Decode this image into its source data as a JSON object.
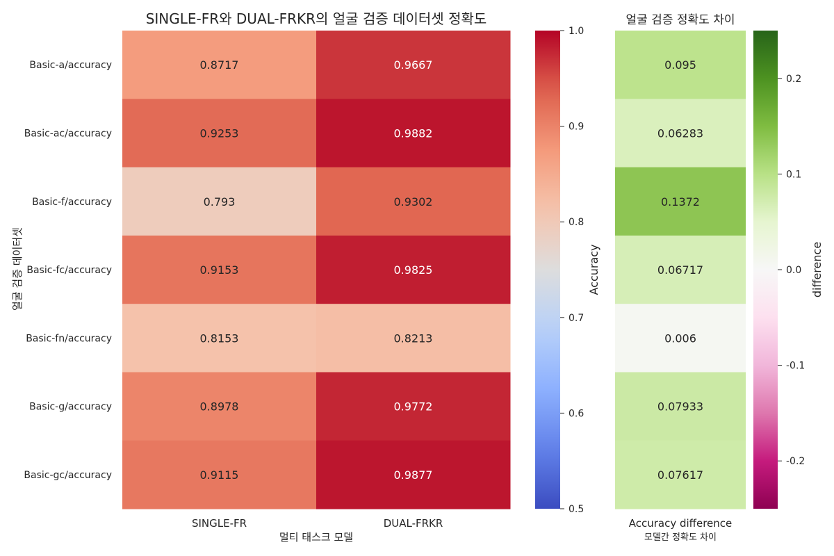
{
  "chart_data": [
    {
      "type": "heatmap",
      "title": "SINGLE-FR와 DUAL-FRKR의 얼굴 검증 데이터셋 정확도",
      "xlabel": "멀티 태스크 모델",
      "ylabel": "얼굴 검증 데이터셋",
      "x_categories": [
        "SINGLE-FR",
        "DUAL-FRKR"
      ],
      "y_categories": [
        "Basic-a/accuracy",
        "Basic-ac/accuracy",
        "Basic-f/accuracy",
        "Basic-fc/accuracy",
        "Basic-fn/accuracy",
        "Basic-g/accuracy",
        "Basic-gc/accuracy"
      ],
      "values": [
        [
          0.8717,
          0.9667
        ],
        [
          0.9253,
          0.9882
        ],
        [
          0.793,
          0.9302
        ],
        [
          0.9153,
          0.9825
        ],
        [
          0.8153,
          0.8213
        ],
        [
          0.8978,
          0.9772
        ],
        [
          0.9115,
          0.9877
        ]
      ],
      "labels": [
        [
          "0.8717",
          "0.9667"
        ],
        [
          "0.9253",
          "0.9882"
        ],
        [
          "0.793",
          "0.9302"
        ],
        [
          "0.9153",
          "0.9825"
        ],
        [
          "0.8153",
          "0.8213"
        ],
        [
          "0.8978",
          "0.9772"
        ],
        [
          "0.9115",
          "0.9877"
        ]
      ],
      "colormap": "coolwarm",
      "colorbar": {
        "label": "Accuracy",
        "range": [
          0.5,
          1.0
        ],
        "ticks": [
          0.5,
          0.6,
          0.7,
          0.8,
          0.9,
          1.0
        ],
        "tick_labels": [
          "0.5",
          "0.6",
          "0.7",
          "0.8",
          "0.9",
          "1.0"
        ]
      }
    },
    {
      "type": "heatmap",
      "title": "얼굴 검증 정확도 차이",
      "x_categories": [
        "Accuracy difference"
      ],
      "x_sublabel": "모델간 정확도 차이",
      "values": [
        [
          0.095
        ],
        [
          0.06283
        ],
        [
          0.1372
        ],
        [
          0.06717
        ],
        [
          0.006
        ],
        [
          0.07933
        ],
        [
          0.07617
        ]
      ],
      "labels": [
        [
          "0.095"
        ],
        [
          "0.06283"
        ],
        [
          "0.1372"
        ],
        [
          "0.06717"
        ],
        [
          "0.006"
        ],
        [
          "0.07933"
        ],
        [
          "0.07617"
        ]
      ],
      "colormap": "PiYG",
      "colorbar": {
        "label": "difference",
        "range": [
          -0.25,
          0.25
        ],
        "ticks": [
          0.2,
          0.1,
          0.0,
          -0.1,
          -0.2
        ],
        "tick_labels": [
          "0.2",
          "0.1",
          "0.0",
          "-0.1",
          "-0.2"
        ]
      }
    }
  ]
}
